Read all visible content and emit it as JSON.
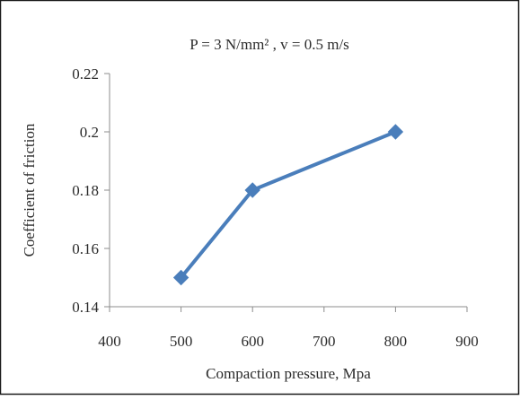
{
  "chart_data": {
    "type": "line",
    "title": "P = 3 N/mm² , v = 0.5 m/s",
    "xlabel": "Compaction pressure, Mpa",
    "ylabel": "Coefficient of friction",
    "xlim": [
      400,
      900
    ],
    "ylim": [
      0.14,
      0.22
    ],
    "xticks": [
      400,
      500,
      600,
      700,
      800,
      900
    ],
    "yticks": [
      0.14,
      0.16,
      0.18,
      0.2,
      0.22
    ],
    "xtick_labels": [
      "400",
      "500",
      "600",
      "700",
      "800",
      "900"
    ],
    "ytick_labels": [
      "0.14",
      "0.16",
      "0.18",
      "0.2",
      "0.22"
    ],
    "grid": false,
    "legend": "none",
    "series": [
      {
        "x": [
          500,
          600,
          800
        ],
        "y": [
          0.15,
          0.18,
          0.2
        ],
        "color": "#4a7ebb",
        "marker": "diamond"
      }
    ]
  }
}
